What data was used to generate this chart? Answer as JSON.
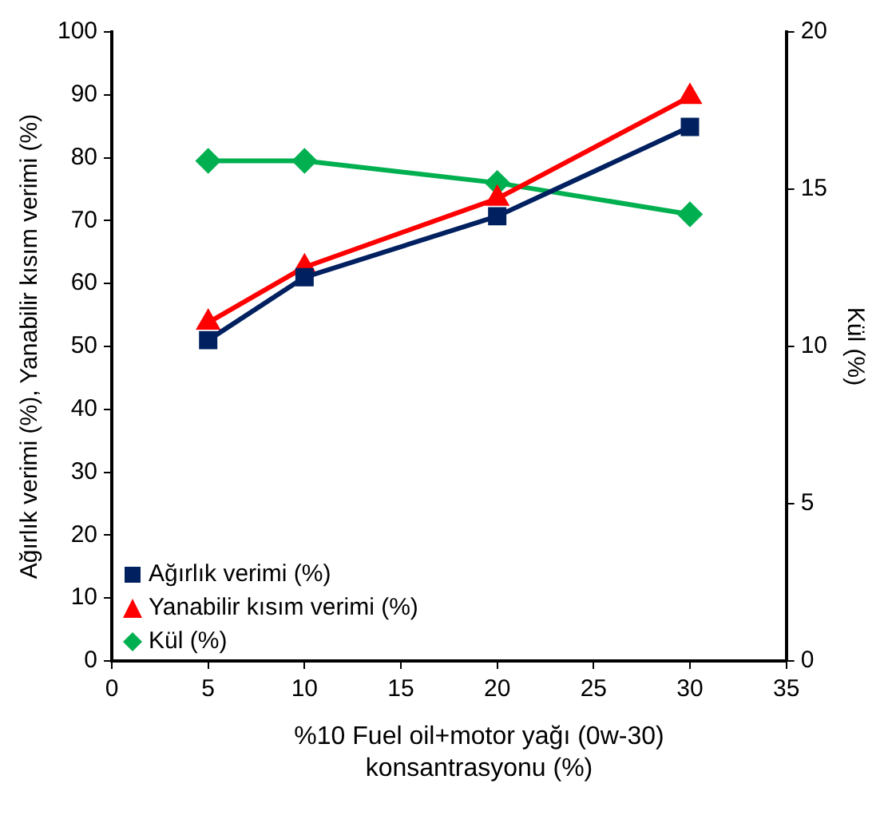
{
  "chart_data": {
    "type": "line",
    "xlabel": "%10 Fuel oil+motor yağı (0w-30) konsantrasyonu (%)",
    "ylabel": "Ağırlık verimi (%), Yanabilir kısım verimi (%)",
    "y2label": "Kül (%)",
    "x": [
      5,
      10,
      20,
      30
    ],
    "series": [
      {
        "name": "Ağırlık verimi (%)",
        "color": "#002060",
        "marker": "square",
        "values": [
          51,
          61,
          70.7,
          84.9
        ]
      },
      {
        "name": "Yanabilir kısım verimi (%)",
        "color": "#ff0000",
        "marker": "triangle",
        "values": [
          53.8,
          62.6,
          73.5,
          89.7
        ]
      },
      {
        "name": "Kül (%)",
        "color": "#00b050",
        "marker": "diamond",
        "axis": "y2",
        "values": [
          15.9,
          15.9,
          15.2,
          14.2
        ]
      }
    ],
    "xlim": [
      0,
      35
    ],
    "xticks": [
      0,
      5,
      10,
      15,
      20,
      25,
      30,
      35
    ],
    "ylim": [
      0,
      100
    ],
    "yticks": [
      0,
      10,
      20,
      30,
      40,
      50,
      60,
      70,
      80,
      90,
      100
    ],
    "y2lim": [
      0,
      20
    ],
    "y2ticks": [
      0,
      5,
      10,
      15,
      20
    ],
    "grid": false,
    "legend": "bottom left"
  }
}
